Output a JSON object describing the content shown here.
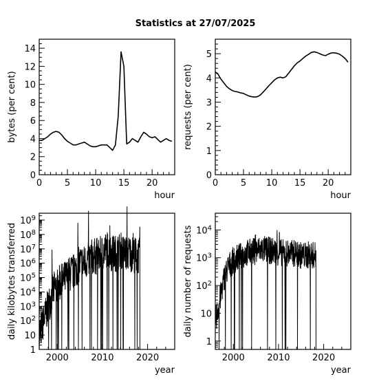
{
  "title": "Statistics at 27/07/2025",
  "chart_data": [
    {
      "type": "line",
      "xlabel": "hour",
      "ylabel": "bytes (per cent)",
      "xlim": [
        0,
        24
      ],
      "ylim": [
        0,
        15
      ],
      "xticks": [
        0,
        5,
        10,
        15,
        20
      ],
      "yticks": [
        0,
        2,
        4,
        6,
        8,
        10,
        12,
        14
      ],
      "series": [
        {
          "x": [
            0,
            0.5,
            1,
            1.5,
            2,
            2.5,
            3,
            3.5,
            4,
            4.5,
            5,
            5.5,
            6,
            6.5,
            7,
            7.5,
            8,
            8.5,
            9,
            9.5,
            10,
            10.5,
            11,
            11.5,
            12,
            12.5,
            13,
            13.5,
            14,
            14.5,
            15,
            15.5,
            16,
            16.5,
            17,
            17.5,
            18,
            18.5,
            19,
            19.5,
            20,
            20.5,
            21,
            21.5,
            22,
            22.5,
            23,
            23.5
          ],
          "y": [
            3.8,
            3.8,
            4.0,
            4.2,
            4.5,
            4.7,
            4.8,
            4.7,
            4.4,
            4.0,
            3.7,
            3.5,
            3.3,
            3.3,
            3.4,
            3.5,
            3.6,
            3.4,
            3.2,
            3.1,
            3.1,
            3.2,
            3.3,
            3.3,
            3.3,
            3.0,
            2.7,
            3.3,
            6.5,
            13.6,
            12.0,
            3.4,
            3.6,
            4.0,
            3.8,
            3.6,
            4.2,
            4.7,
            4.5,
            4.2,
            4.1,
            4.2,
            3.9,
            3.6,
            3.8,
            4.0,
            3.8,
            3.7
          ]
        }
      ]
    },
    {
      "type": "line",
      "xlabel": "hour",
      "ylabel": "requests (per cent)",
      "xlim": [
        0,
        24
      ],
      "ylim": [
        0,
        5.6
      ],
      "xticks": [
        0,
        5,
        10,
        15,
        20
      ],
      "yticks": [
        0,
        1,
        2,
        3,
        4,
        5
      ],
      "series": [
        {
          "x": [
            0,
            0.5,
            1,
            1.5,
            2,
            2.5,
            3,
            3.5,
            4,
            4.5,
            5,
            5.5,
            6,
            6.5,
            7,
            7.5,
            8,
            8.5,
            9,
            9.5,
            10,
            10.5,
            11,
            11.5,
            12,
            12.5,
            13,
            13.5,
            14,
            14.5,
            15,
            15.5,
            16,
            16.5,
            17,
            17.5,
            18,
            18.5,
            19,
            19.5,
            20,
            20.5,
            21,
            21.5,
            22,
            22.5,
            23,
            23.5
          ],
          "y": [
            4.25,
            4.15,
            3.95,
            3.8,
            3.65,
            3.55,
            3.48,
            3.44,
            3.42,
            3.38,
            3.36,
            3.3,
            3.25,
            3.22,
            3.21,
            3.23,
            3.3,
            3.42,
            3.55,
            3.68,
            3.8,
            3.92,
            4.0,
            4.03,
            4.0,
            4.05,
            4.2,
            4.35,
            4.5,
            4.62,
            4.7,
            4.8,
            4.9,
            4.97,
            5.05,
            5.08,
            5.05,
            5.0,
            4.95,
            4.92,
            4.98,
            5.03,
            5.04,
            5.02,
            4.98,
            4.9,
            4.8,
            4.65
          ]
        }
      ]
    },
    {
      "type": "line",
      "scale": "log",
      "xlabel": "year",
      "ylabel": "daily kilobytes transferred",
      "xlim": [
        1996,
        2026
      ],
      "ylim": [
        1,
        3000000000.0
      ],
      "xticks": [
        2000,
        2010,
        2020
      ],
      "yticks": [
        1,
        10,
        100,
        1000,
        10000,
        100000,
        1000000,
        10000000,
        100000000,
        1000000000
      ],
      "ytick_labels": [
        "1",
        "10",
        "10^2",
        "10^3",
        "10^4",
        "10^5",
        "10^6",
        "10^7",
        "10^8",
        "10^9"
      ],
      "series": [
        {
          "x": [
            1996,
            1997,
            1998,
            1999,
            2000,
            2001,
            2002,
            2003,
            2004,
            2005,
            2006,
            2007,
            2008,
            2009,
            2010,
            2011,
            2012,
            2013,
            2014,
            2015,
            2016,
            2017,
            2018
          ],
          "y": [
            10,
            100,
            1000,
            10000,
            30000,
            50000,
            100000,
            200000,
            300000,
            1000000,
            1000000,
            2000000,
            3000000,
            3000000,
            5000000,
            10000000,
            5000000,
            5000000,
            8000000,
            5000000,
            5000000,
            4000000,
            3000000
          ]
        }
      ]
    },
    {
      "type": "line",
      "scale": "log",
      "xlabel": "year",
      "ylabel": "daily number of requests",
      "xlim": [
        1996,
        2026
      ],
      "ylim": [
        0.5,
        40000
      ],
      "xticks": [
        2000,
        2010,
        2020
      ],
      "yticks": [
        1,
        10,
        100,
        1000,
        10000
      ],
      "ytick_labels": [
        "1",
        "10",
        "10^2",
        "10^3",
        "10^4"
      ],
      "series": [
        {
          "x": [
            1996,
            1997,
            1998,
            1999,
            2000,
            2001,
            2002,
            2003,
            2004,
            2005,
            2006,
            2007,
            2008,
            2009,
            2010,
            2011,
            2012,
            2013,
            2014,
            2015,
            2016,
            2017,
            2018
          ],
          "y": [
            5,
            30,
            200,
            500,
            800,
            1000,
            1200,
            1500,
            1600,
            1800,
            2000,
            2000,
            1800,
            1700,
            1600,
            1500,
            1500,
            1400,
            1500,
            1200,
            1200,
            1300,
            1200
          ]
        }
      ]
    }
  ]
}
